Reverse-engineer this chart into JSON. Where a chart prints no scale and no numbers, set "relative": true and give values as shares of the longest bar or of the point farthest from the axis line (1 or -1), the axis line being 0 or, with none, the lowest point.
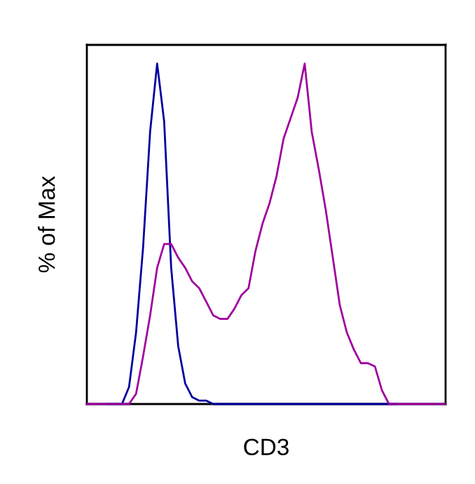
{
  "chart_data": {
    "type": "line",
    "relative": true,
    "xlabel": "CD3",
    "ylabel": "% of Max",
    "categories": [
      null,
      null,
      null,
      null,
      null,
      null,
      null,
      null,
      null,
      null,
      null,
      null,
      null,
      null,
      null,
      null,
      null,
      null,
      null,
      null,
      null,
      null,
      null,
      null,
      null,
      null,
      null,
      null,
      null,
      null,
      null,
      null,
      null,
      null,
      null,
      null,
      null,
      null,
      null,
      null,
      null,
      null,
      null,
      null,
      null,
      null,
      null,
      null,
      null,
      null,
      null,
      null
    ],
    "series": [
      {
        "color": "#0000a0",
        "values": [
          null,
          null,
          null,
          0,
          0,
          0,
          0.05,
          0.21,
          0.46,
          0.8,
          1.0,
          0.83,
          0.4,
          0.17,
          0.06,
          0.02,
          0.01,
          0.01,
          0,
          0,
          0,
          0,
          0,
          0,
          0,
          0,
          0,
          0,
          0,
          0,
          0,
          0,
          0,
          0,
          0,
          0,
          0,
          0,
          0,
          0,
          0,
          0,
          0,
          0,
          0,
          null,
          null,
          null,
          null,
          null,
          null,
          null
        ]
      },
      {
        "color": "#a000a0",
        "values": [
          0,
          0,
          0,
          0,
          0,
          0,
          0,
          0.03,
          0.14,
          0.26,
          0.4,
          0.47,
          0.47,
          0.43,
          0.4,
          0.36,
          0.34,
          0.3,
          0.26,
          0.25,
          0.25,
          0.28,
          0.32,
          0.34,
          0.45,
          0.53,
          0.59,
          0.67,
          0.78,
          0.84,
          0.9,
          1.0,
          0.8,
          0.69,
          0.57,
          0.43,
          0.29,
          0.21,
          0.16,
          0.12,
          0.12,
          0.11,
          0.04,
          0,
          0,
          0,
          0,
          0,
          0,
          0,
          0,
          0
        ]
      }
    ],
    "grid": false,
    "marker": "none",
    "line_style": "solid"
  }
}
